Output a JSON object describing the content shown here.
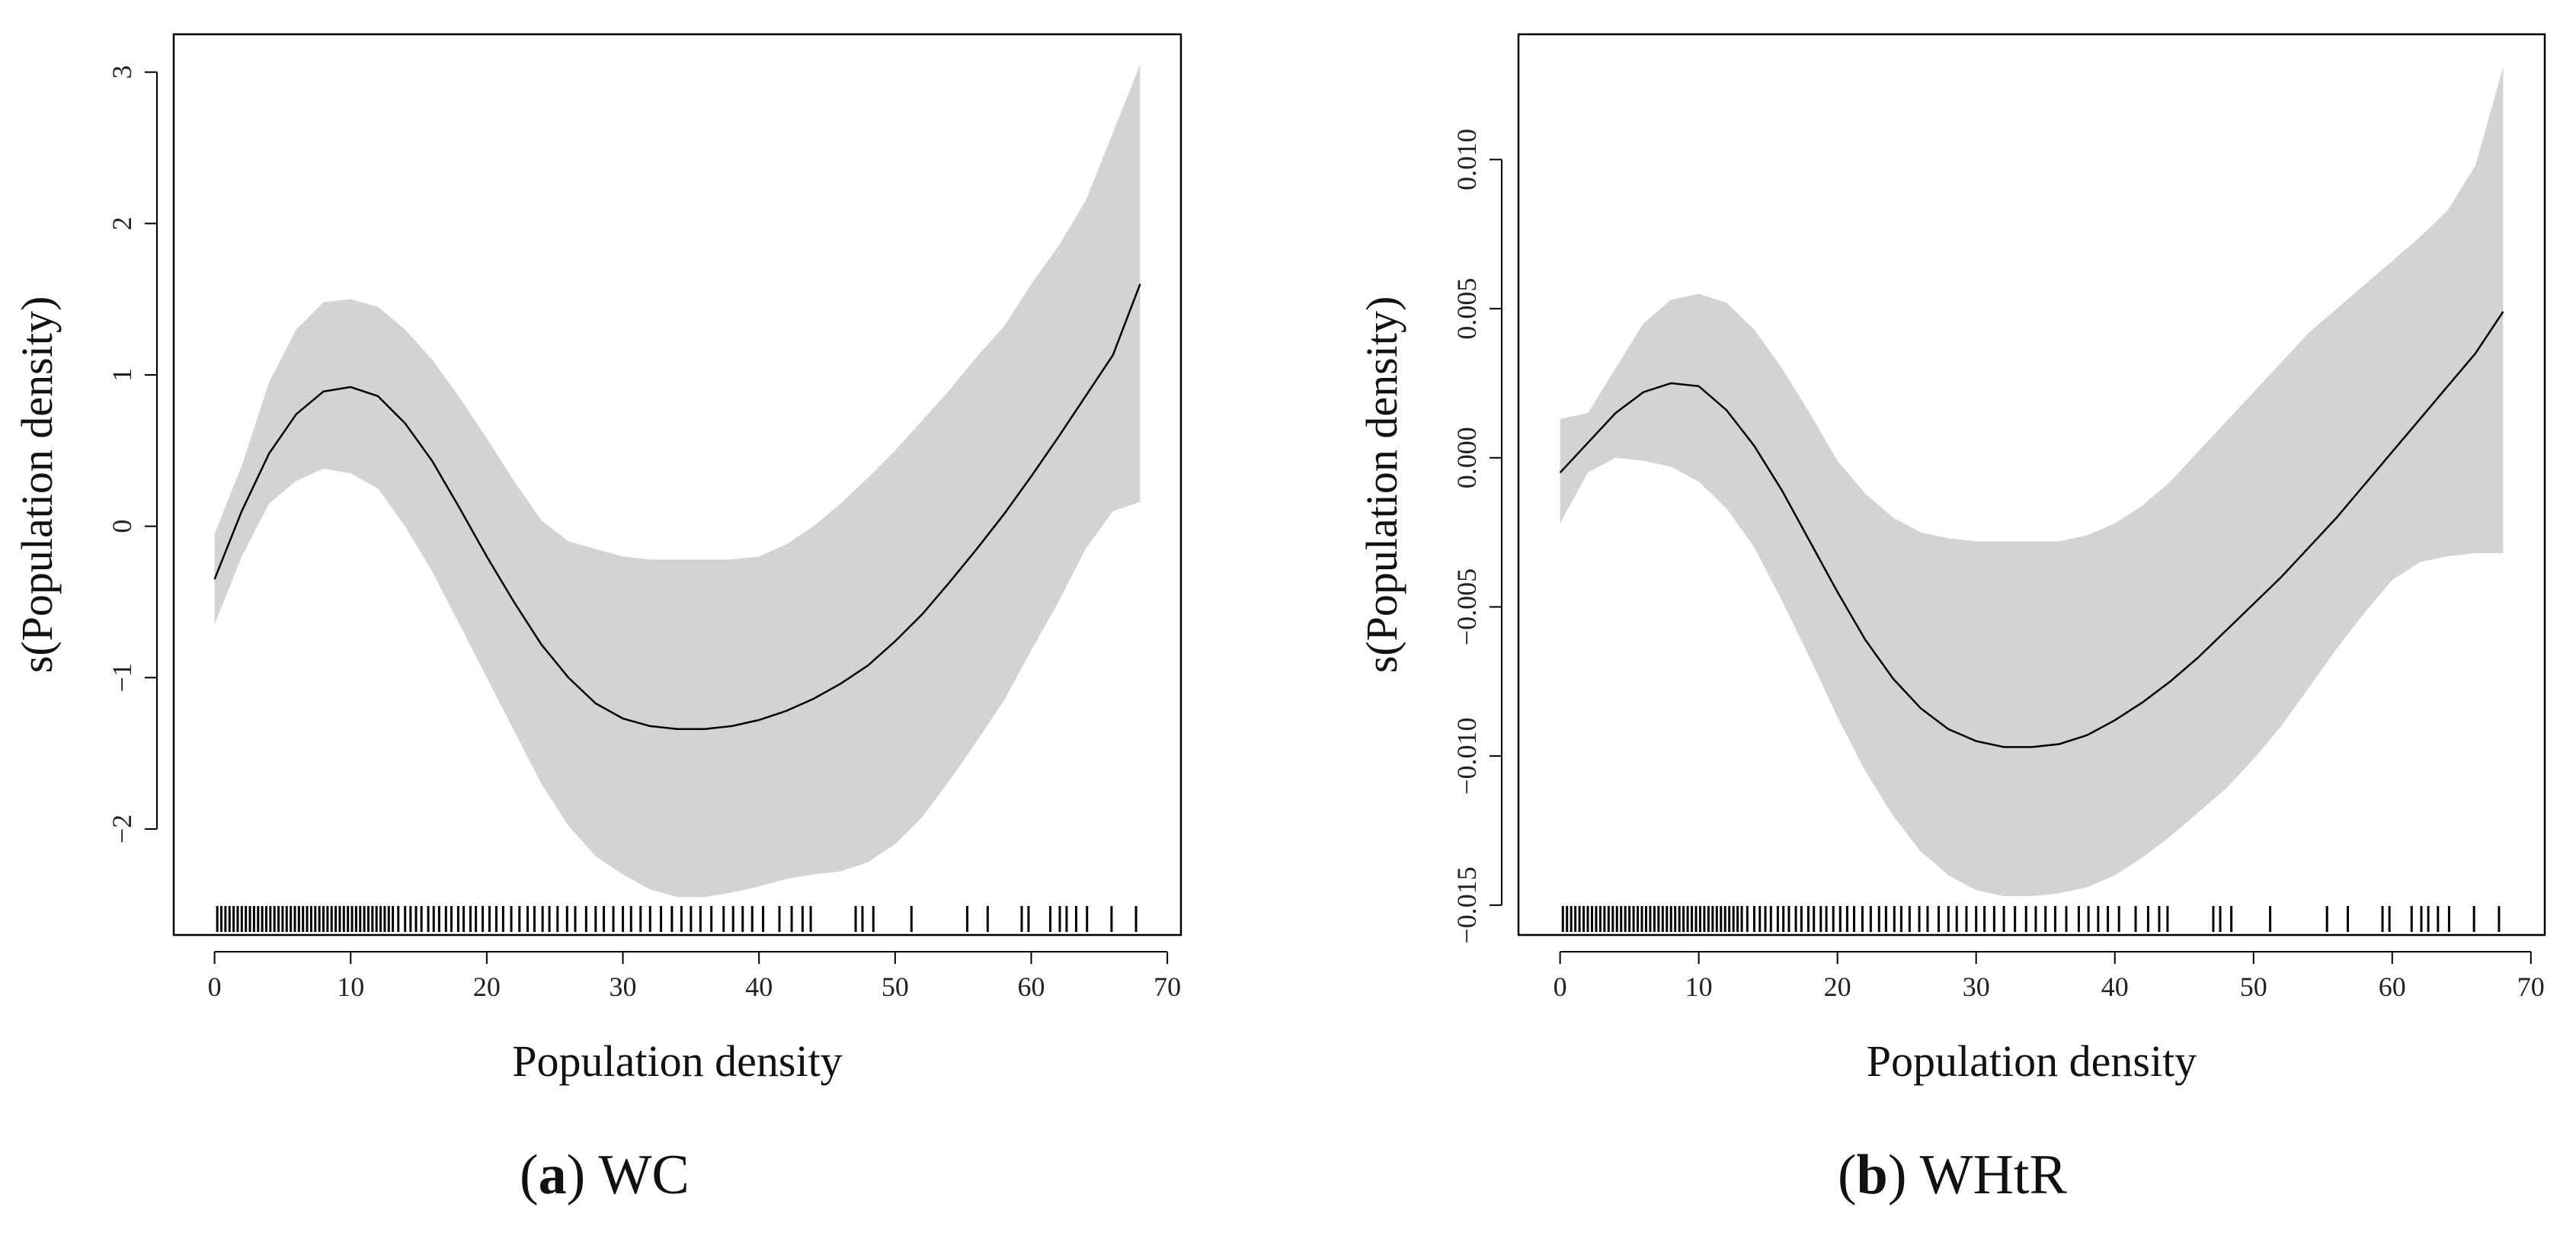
{
  "chart_data": [
    {
      "type": "line",
      "panel": "a",
      "caption_letter": "a",
      "caption_text": "WC",
      "xlabel": "Population density",
      "ylabel": "s(Population density)",
      "xlim": [
        -3,
        71
      ],
      "ylim": [
        -2.7,
        3.25
      ],
      "xticks": [
        0,
        10,
        20,
        30,
        40,
        50,
        60,
        70
      ],
      "yticks": [
        -2,
        -1,
        0,
        1,
        2,
        3
      ],
      "ytick_labels": [
        "−2",
        "−1",
        "0",
        "1",
        "2",
        "3"
      ],
      "series": [
        {
          "name": "smooth",
          "x": [
            0,
            2,
            4,
            6,
            8,
            10,
            12,
            14,
            16,
            18,
            20,
            22,
            24,
            26,
            28,
            30,
            32,
            34,
            36,
            38,
            40,
            42,
            44,
            46,
            48,
            50,
            52,
            54,
            56,
            58,
            60,
            62,
            64,
            66,
            68
          ],
          "y": [
            -0.35,
            0.1,
            0.48,
            0.74,
            0.89,
            0.92,
            0.86,
            0.68,
            0.43,
            0.12,
            -0.2,
            -0.5,
            -0.78,
            -1.0,
            -1.17,
            -1.27,
            -1.32,
            -1.34,
            -1.34,
            -1.32,
            -1.28,
            -1.22,
            -1.14,
            -1.04,
            -0.92,
            -0.76,
            -0.58,
            -0.37,
            -0.15,
            0.08,
            0.33,
            0.59,
            0.86,
            1.13,
            1.6
          ]
        },
        {
          "name": "upper",
          "x": [
            0,
            2,
            4,
            6,
            8,
            10,
            12,
            14,
            16,
            18,
            20,
            22,
            24,
            26,
            28,
            30,
            32,
            34,
            36,
            38,
            40,
            42,
            44,
            46,
            48,
            50,
            52,
            54,
            56,
            58,
            60,
            62,
            64,
            66,
            68
          ],
          "y": [
            -0.05,
            0.4,
            0.95,
            1.3,
            1.48,
            1.5,
            1.45,
            1.3,
            1.1,
            0.85,
            0.58,
            0.3,
            0.04,
            -0.1,
            -0.15,
            -0.2,
            -0.22,
            -0.22,
            -0.22,
            -0.22,
            -0.2,
            -0.12,
            0.0,
            0.15,
            0.32,
            0.5,
            0.7,
            0.9,
            1.12,
            1.32,
            1.6,
            1.85,
            2.15,
            2.6,
            3.05
          ]
        },
        {
          "name": "lower",
          "x": [
            0,
            2,
            4,
            6,
            8,
            10,
            12,
            14,
            16,
            18,
            20,
            22,
            24,
            26,
            28,
            30,
            32,
            34,
            36,
            38,
            40,
            42,
            44,
            46,
            48,
            50,
            52,
            54,
            56,
            58,
            60,
            62,
            64,
            66,
            68
          ],
          "y": [
            -0.65,
            -0.2,
            0.15,
            0.3,
            0.38,
            0.35,
            0.25,
            0.0,
            -0.3,
            -0.65,
            -1.0,
            -1.35,
            -1.7,
            -1.98,
            -2.18,
            -2.3,
            -2.4,
            -2.45,
            -2.45,
            -2.42,
            -2.38,
            -2.33,
            -2.3,
            -2.28,
            -2.22,
            -2.1,
            -1.92,
            -1.68,
            -1.42,
            -1.15,
            -0.82,
            -0.5,
            -0.15,
            0.1,
            0.16
          ]
        }
      ],
      "rug_x": [
        0.2,
        0.5,
        0.8,
        1.1,
        1.4,
        1.7,
        2.0,
        2.3,
        2.6,
        2.9,
        3.2,
        3.5,
        3.8,
        4.1,
        4.4,
        4.7,
        5.0,
        5.3,
        5.6,
        5.9,
        6.2,
        6.5,
        6.8,
        7.1,
        7.4,
        7.7,
        8.0,
        8.3,
        8.6,
        8.9,
        9.2,
        9.5,
        9.8,
        10.1,
        10.4,
        10.7,
        11.0,
        11.3,
        11.6,
        11.9,
        12.2,
        12.5,
        12.8,
        13.1,
        13.5,
        14.0,
        14.4,
        14.8,
        15.2,
        15.7,
        16.1,
        16.5,
        17.0,
        17.4,
        17.9,
        18.3,
        18.8,
        19.2,
        19.7,
        20.2,
        20.7,
        21.2,
        21.8,
        22.4,
        23.0,
        23.5,
        24.1,
        24.6,
        25.2,
        25.9,
        26.5,
        27.3,
        28.0,
        28.6,
        29.3,
        30.0,
        30.6,
        31.3,
        32.0,
        32.8,
        33.6,
        34.3,
        35.0,
        35.7,
        36.5,
        37.4,
        38.1,
        38.8,
        39.5,
        40.3,
        41.5,
        42.4,
        43.2,
        43.8,
        47.1,
        47.6,
        48.4,
        51.2,
        55.3,
        56.8,
        59.3,
        59.8,
        61.4,
        62.1,
        62.6,
        63.3,
        64.1,
        65.9,
        67.7
      ]
    },
    {
      "type": "line",
      "panel": "b",
      "caption_letter": "b",
      "caption_text": "WHtR",
      "xlabel": "Population density",
      "ylabel": "s(Population density)",
      "xlim": [
        -3,
        71
      ],
      "ylim": [
        -0.016,
        0.0142
      ],
      "xticks": [
        0,
        10,
        20,
        30,
        40,
        50,
        60,
        70
      ],
      "yticks": [
        -0.015,
        -0.01,
        -0.005,
        0.0,
        0.005,
        0.01
      ],
      "ytick_labels": [
        "−0.015",
        "−0.010",
        "−0.005",
        "0.000",
        "0.005",
        "0.010"
      ],
      "series": [
        {
          "name": "smooth",
          "x": [
            0,
            2,
            4,
            6,
            8,
            10,
            12,
            14,
            16,
            18,
            20,
            22,
            24,
            26,
            28,
            30,
            32,
            34,
            36,
            38,
            40,
            42,
            44,
            46,
            48,
            50,
            52,
            54,
            56,
            58,
            60,
            62,
            64,
            66,
            68
          ],
          "y": [
            -0.0005,
            0.0005,
            0.0015,
            0.0022,
            0.0025,
            0.0024,
            0.0016,
            0.0004,
            -0.0011,
            -0.0028,
            -0.0045,
            -0.0061,
            -0.0074,
            -0.0084,
            -0.0091,
            -0.0095,
            -0.0097,
            -0.0097,
            -0.0096,
            -0.0093,
            -0.0088,
            -0.0082,
            -0.0075,
            -0.0067,
            -0.0058,
            -0.0049,
            -0.004,
            -0.003,
            -0.002,
            -0.0009,
            0.0002,
            0.0013,
            0.0024,
            0.0035,
            0.0049
          ]
        },
        {
          "name": "upper",
          "x": [
            0,
            2,
            4,
            6,
            8,
            10,
            12,
            14,
            16,
            18,
            20,
            22,
            24,
            26,
            28,
            30,
            32,
            34,
            36,
            38,
            40,
            42,
            44,
            46,
            48,
            50,
            52,
            54,
            56,
            58,
            60,
            62,
            64,
            66,
            68
          ],
          "y": [
            0.0013,
            0.0015,
            0.003,
            0.0045,
            0.0053,
            0.0055,
            0.0052,
            0.0043,
            0.003,
            0.0015,
            -0.0001,
            -0.0012,
            -0.002,
            -0.0025,
            -0.0027,
            -0.0028,
            -0.0028,
            -0.0028,
            -0.0028,
            -0.0026,
            -0.0022,
            -0.0016,
            -0.0008,
            0.0002,
            0.0012,
            0.0022,
            0.0032,
            0.0042,
            0.005,
            0.0058,
            0.0066,
            0.0074,
            0.0083,
            0.0098,
            0.0131
          ]
        },
        {
          "name": "lower",
          "x": [
            0,
            2,
            4,
            6,
            8,
            10,
            12,
            14,
            16,
            18,
            20,
            22,
            24,
            26,
            28,
            30,
            32,
            34,
            36,
            38,
            40,
            42,
            44,
            46,
            48,
            50,
            52,
            54,
            56,
            58,
            60,
            62,
            64,
            66,
            68
          ],
          "y": [
            -0.0022,
            -0.0005,
            0.0,
            -0.0001,
            -0.0003,
            -0.0008,
            -0.0017,
            -0.003,
            -0.0048,
            -0.0067,
            -0.0087,
            -0.0105,
            -0.012,
            -0.0132,
            -0.014,
            -0.0145,
            -0.0147,
            -0.0147,
            -0.0146,
            -0.0144,
            -0.014,
            -0.0134,
            -0.0127,
            -0.0119,
            -0.0111,
            -0.0101,
            -0.009,
            -0.0077,
            -0.0064,
            -0.0052,
            -0.0041,
            -0.0035,
            -0.0033,
            -0.0032,
            -0.0032
          ]
        }
      ],
      "rug_x": [
        0.2,
        0.5,
        0.8,
        1.1,
        1.4,
        1.7,
        2.0,
        2.3,
        2.6,
        2.9,
        3.2,
        3.5,
        3.8,
        4.1,
        4.4,
        4.7,
        5.0,
        5.3,
        5.6,
        5.9,
        6.2,
        6.5,
        6.8,
        7.1,
        7.4,
        7.7,
        8.0,
        8.3,
        8.6,
        8.9,
        9.2,
        9.5,
        9.8,
        10.1,
        10.4,
        10.7,
        11.0,
        11.3,
        11.6,
        11.9,
        12.2,
        12.5,
        12.8,
        13.1,
        13.5,
        14.0,
        14.4,
        14.8,
        15.2,
        15.7,
        16.1,
        16.5,
        17.0,
        17.4,
        17.9,
        18.3,
        18.8,
        19.2,
        19.7,
        20.2,
        20.7,
        21.2,
        21.8,
        22.4,
        23.0,
        23.5,
        24.1,
        24.6,
        25.2,
        25.9,
        26.5,
        27.3,
        28.0,
        28.6,
        29.3,
        30.0,
        30.6,
        31.3,
        32.0,
        32.8,
        33.6,
        34.3,
        35.0,
        35.7,
        36.5,
        37.4,
        38.1,
        38.8,
        39.5,
        40.3,
        41.5,
        42.4,
        43.2,
        43.8,
        47.1,
        47.6,
        48.4,
        51.2,
        55.3,
        56.8,
        59.3,
        59.8,
        61.4,
        62.1,
        62.6,
        63.3,
        64.1,
        65.9,
        67.7
      ]
    }
  ]
}
